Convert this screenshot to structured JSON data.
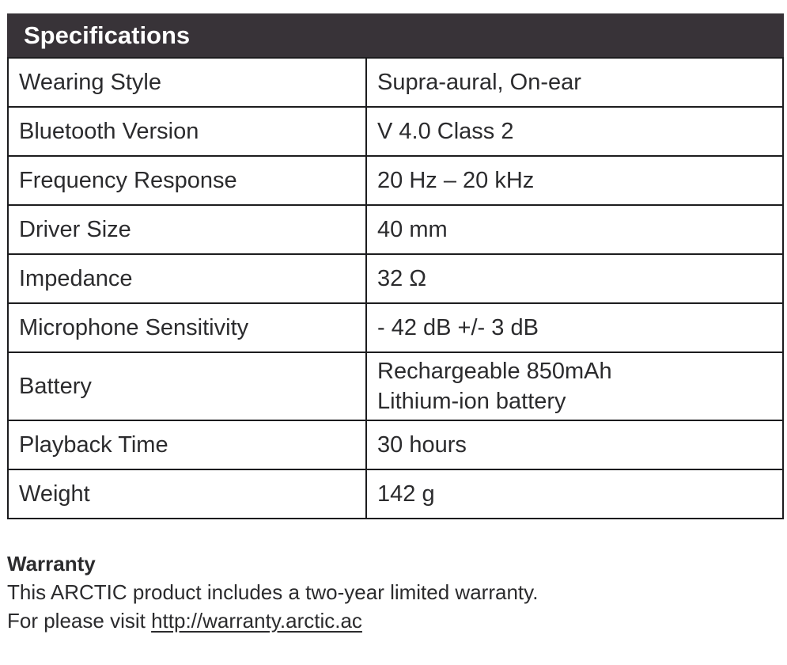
{
  "specifications": {
    "header": "Specifications",
    "header_bg_color": "#383338",
    "header_text_color": "#ffffff",
    "rows": [
      {
        "label": "Wearing Style",
        "value": "Supra-aural, On-ear"
      },
      {
        "label": "Bluetooth Version",
        "value": "V 4.0 Class 2"
      },
      {
        "label": "Frequency Response",
        "value": "20 Hz – 20 kHz"
      },
      {
        "label": "Driver Size",
        "value": "40 mm"
      },
      {
        "label": "Impedance",
        "value": "32 Ω"
      },
      {
        "label": "Microphone Sensitivity",
        "value": "- 42 dB +/- 3 dB"
      },
      {
        "label": "Battery",
        "value": "Rechargeable 850mAh\nLithium-ion battery"
      },
      {
        "label": "Playback Time",
        "value": "30 hours"
      },
      {
        "label": "Weight",
        "value": "142 g"
      }
    ]
  },
  "warranty": {
    "title": "Warranty",
    "line1": "This ARCTIC product includes a two-year limited warranty.",
    "line2_prefix": "For please visit ",
    "link": "http://warranty.arctic.ac"
  }
}
